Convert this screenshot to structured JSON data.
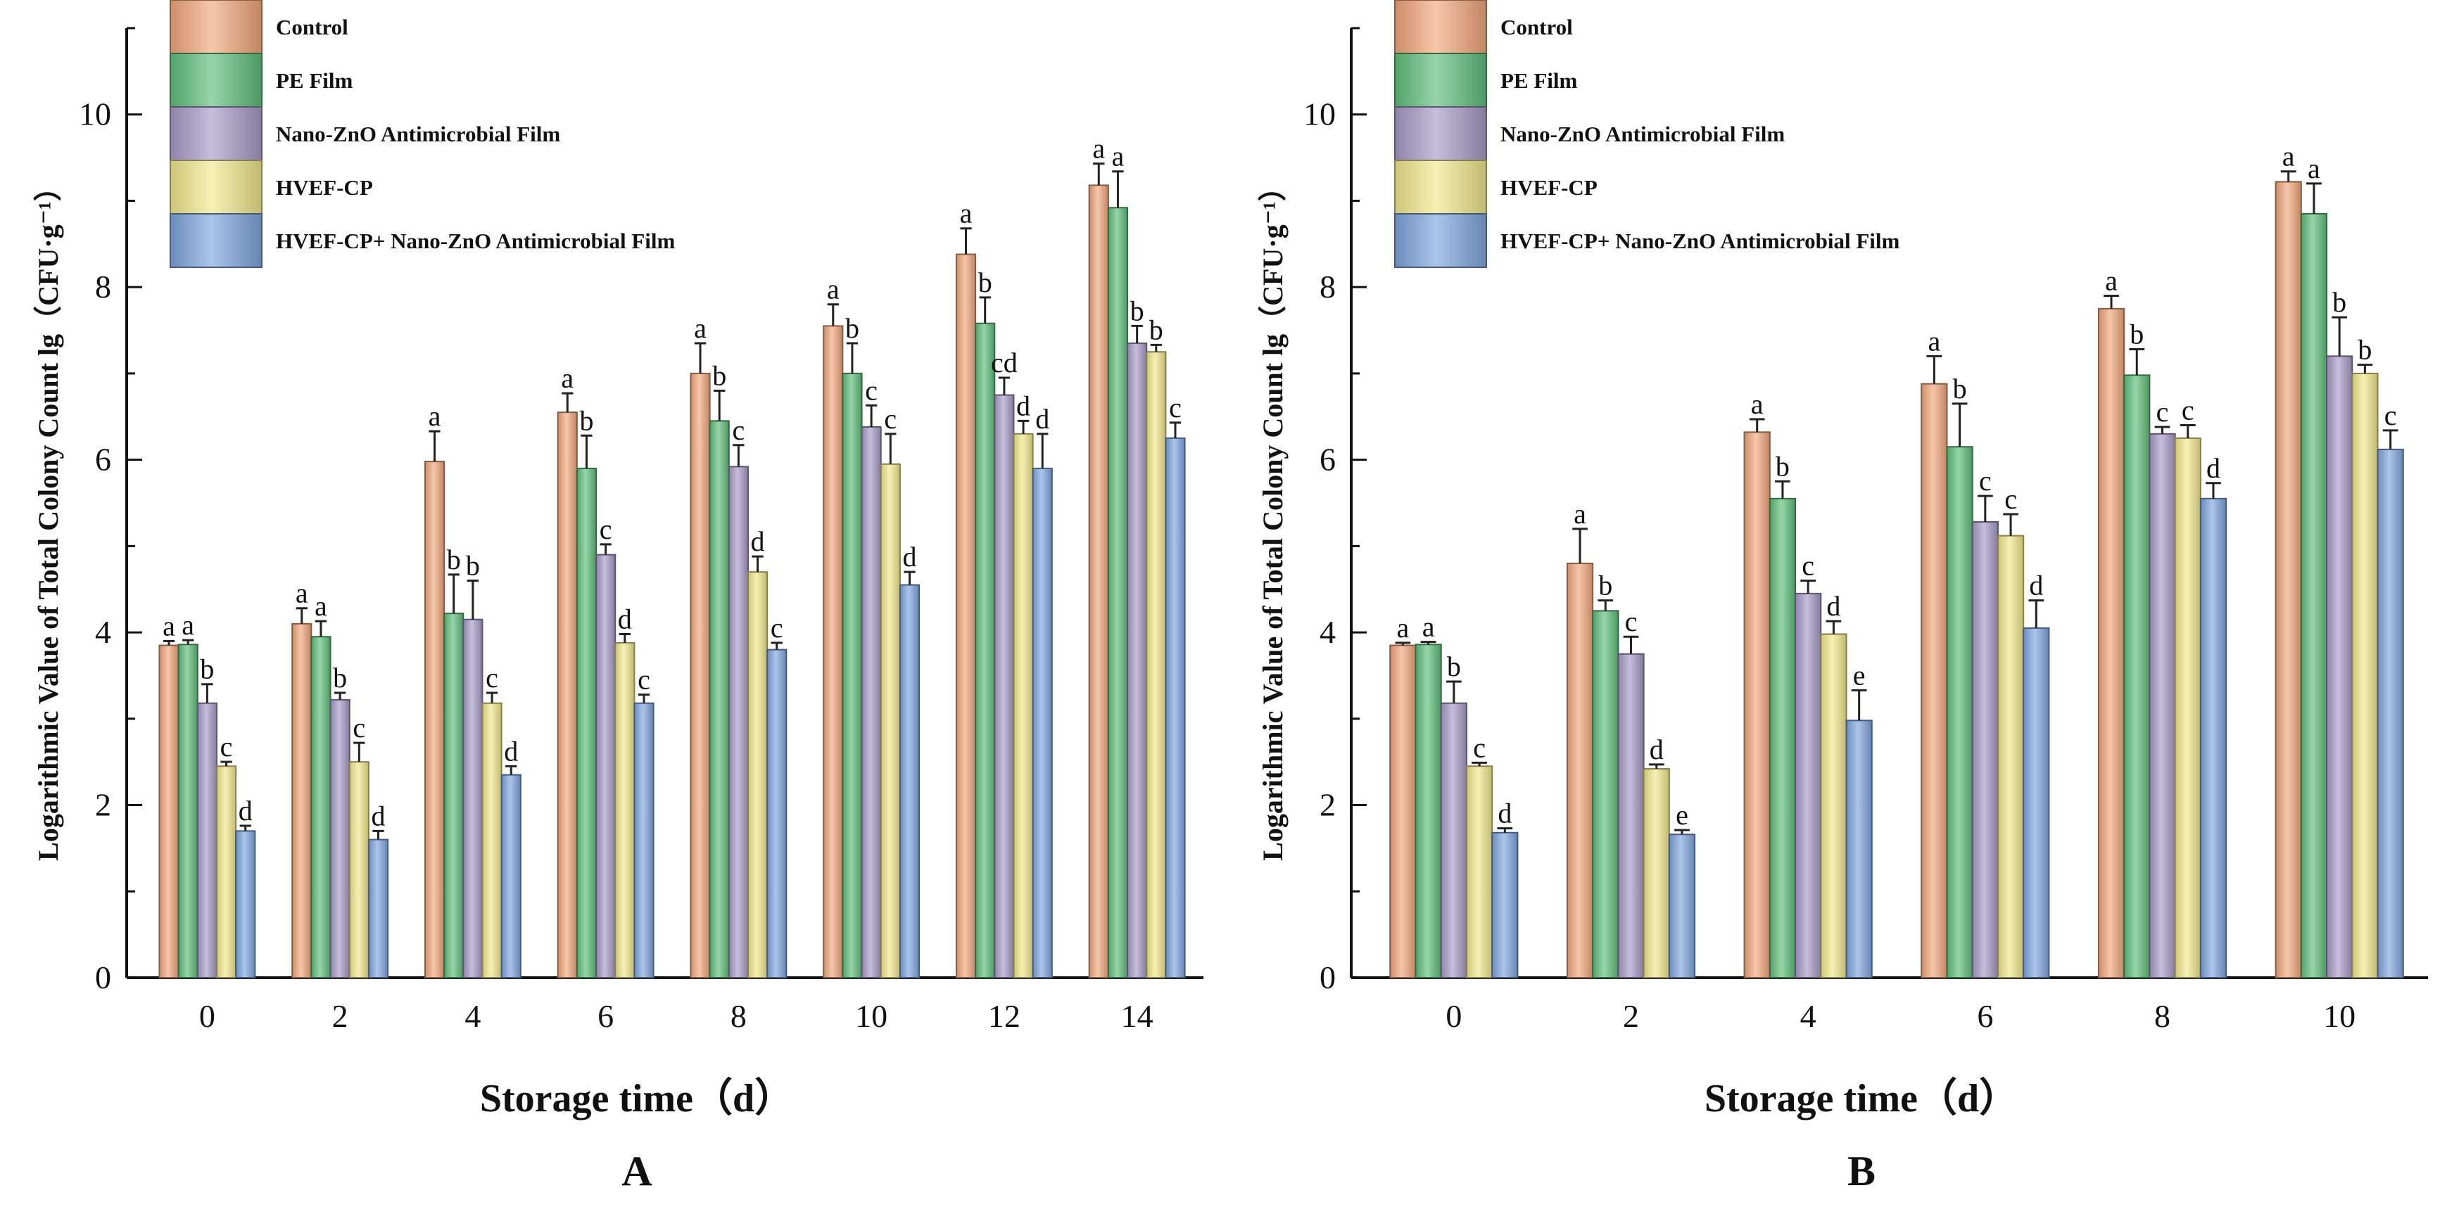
{
  "chart_data": [
    {
      "type": "bar",
      "panel_label": "A",
      "xlabel": "Storage time（d）",
      "ylabel": "Logarithmic Value of Total Colony Count lg（CFU·g⁻¹）",
      "ylim": [
        0,
        11
      ],
      "yticks": [
        0,
        2,
        4,
        6,
        8,
        10
      ],
      "categories": [
        "0",
        "2",
        "4",
        "6",
        "8",
        "10",
        "12",
        "14"
      ],
      "legend_position": "top-left",
      "series": [
        {
          "name": "Control",
          "color": "#f2a77c",
          "values": [
            3.85,
            4.1,
            5.98,
            6.55,
            7.0,
            7.55,
            8.38,
            9.18
          ],
          "errors": [
            0.05,
            0.18,
            0.35,
            0.22,
            0.35,
            0.25,
            0.3,
            0.25
          ],
          "letters": [
            "a",
            "a",
            "a",
            "a",
            "a",
            "a",
            "a",
            "a"
          ]
        },
        {
          "name": "PE Film",
          "color": "#5fbf7a",
          "values": [
            3.86,
            3.95,
            4.22,
            5.9,
            6.45,
            7.0,
            7.58,
            8.92
          ],
          "errors": [
            0.05,
            0.18,
            0.45,
            0.38,
            0.35,
            0.35,
            0.3,
            0.42
          ],
          "letters": [
            "a",
            "a",
            "b",
            "b",
            "b",
            "b",
            "b",
            "a"
          ]
        },
        {
          "name": "Nano-ZnO Antimicrobial Film",
          "color": "#a79bc7",
          "values": [
            3.18,
            3.22,
            4.15,
            4.9,
            5.92,
            6.38,
            6.75,
            7.35
          ],
          "errors": [
            0.22,
            0.08,
            0.45,
            0.12,
            0.25,
            0.25,
            0.2,
            0.2
          ],
          "letters": [
            "b",
            "b",
            "b",
            "c",
            "c",
            "c",
            "cd",
            "b"
          ]
        },
        {
          "name": "HVEF-CP",
          "color": "#f2e88c",
          "values": [
            2.45,
            2.5,
            3.18,
            3.88,
            4.7,
            5.95,
            6.3,
            7.25
          ],
          "errors": [
            0.05,
            0.22,
            0.12,
            0.1,
            0.18,
            0.35,
            0.15,
            0.08
          ],
          "letters": [
            "c",
            "c",
            "c",
            "d",
            "d",
            "c",
            "d",
            "b"
          ]
        },
        {
          "name": "HVEF-CP+ Nano-ZnO Antimicrobial Film",
          "color": "#7fa6e0",
          "values": [
            1.7,
            1.6,
            2.35,
            3.18,
            3.8,
            4.55,
            5.9,
            6.25
          ],
          "errors": [
            0.06,
            0.1,
            0.1,
            0.1,
            0.08,
            0.15,
            0.4,
            0.18
          ],
          "letters": [
            "d",
            "d",
            "d",
            "c",
            "c",
            "d",
            "d",
            "c"
          ]
        }
      ]
    },
    {
      "type": "bar",
      "panel_label": "B",
      "xlabel": "Storage time（d）",
      "ylabel": "Logarithmic Value of Total Colony Count lg（CFU·g⁻¹）",
      "ylim": [
        0,
        11
      ],
      "yticks": [
        0,
        2,
        4,
        6,
        8,
        10
      ],
      "categories": [
        "0",
        "2",
        "4",
        "6",
        "8",
        "10"
      ],
      "legend_position": "top-left",
      "series": [
        {
          "name": "Control",
          "color": "#f2a77c",
          "values": [
            3.85,
            4.8,
            6.32,
            6.88,
            7.75,
            9.22
          ],
          "errors": [
            0.03,
            0.4,
            0.15,
            0.32,
            0.15,
            0.12
          ],
          "letters": [
            "a",
            "a",
            "a",
            "a",
            "a",
            "a"
          ]
        },
        {
          "name": "PE Film",
          "color": "#5fbf7a",
          "values": [
            3.86,
            4.25,
            5.55,
            6.15,
            6.98,
            8.85
          ],
          "errors": [
            0.03,
            0.12,
            0.2,
            0.5,
            0.3,
            0.35
          ],
          "letters": [
            "a",
            "b",
            "b",
            "b",
            "b",
            "a"
          ]
        },
        {
          "name": "Nano-ZnO Antimicrobial Film",
          "color": "#a79bc7",
          "values": [
            3.18,
            3.75,
            4.45,
            5.28,
            6.3,
            7.2
          ],
          "errors": [
            0.25,
            0.2,
            0.15,
            0.3,
            0.08,
            0.45
          ],
          "letters": [
            "b",
            "c",
            "c",
            "c",
            "c",
            "b"
          ]
        },
        {
          "name": "HVEF-CP",
          "color": "#f2e88c",
          "values": [
            2.45,
            2.42,
            3.98,
            5.12,
            6.25,
            7.0
          ],
          "errors": [
            0.04,
            0.05,
            0.15,
            0.25,
            0.15,
            0.1
          ],
          "letters": [
            "c",
            "d",
            "d",
            "c",
            "c",
            "b"
          ]
        },
        {
          "name": "HVEF-CP+ Nano-ZnO Antimicrobial Film",
          "color": "#7fa6e0",
          "values": [
            1.68,
            1.66,
            2.98,
            4.05,
            5.55,
            6.12
          ],
          "errors": [
            0.05,
            0.05,
            0.35,
            0.32,
            0.18,
            0.22
          ],
          "letters": [
            "d",
            "e",
            "e",
            "d",
            "d",
            "c"
          ]
        }
      ]
    }
  ]
}
